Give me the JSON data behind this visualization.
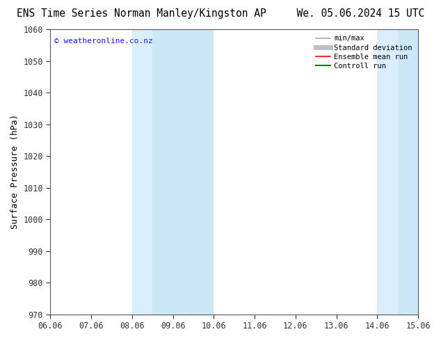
{
  "title_left": "ENS Time Series Norman Manley/Kingston AP",
  "title_right": "We. 05.06.2024 15 UTC",
  "ylabel": "Surface Pressure (hPa)",
  "xlim": [
    0,
    9
  ],
  "ylim": [
    970,
    1060
  ],
  "yticks": [
    970,
    980,
    990,
    1000,
    1010,
    1020,
    1030,
    1040,
    1050,
    1060
  ],
  "xtick_labels": [
    "06.06",
    "07.06",
    "08.06",
    "09.06",
    "10.06",
    "11.06",
    "12.06",
    "13.06",
    "14.06",
    "15.06"
  ],
  "shaded_bands": [
    {
      "x_start": 2.0,
      "x_end": 2.5,
      "color": "#daeeff"
    },
    {
      "x_start": 2.5,
      "x_end": 4.0,
      "color": "#cce8f8"
    },
    {
      "x_start": 8.0,
      "x_end": 8.5,
      "color": "#daeeff"
    },
    {
      "x_start": 8.5,
      "x_end": 9.0,
      "color": "#cce8f8"
    }
  ],
  "watermark": "© weatheronline.co.nz",
  "watermark_color": "#1a1aff",
  "legend_items": [
    {
      "label": "min/max",
      "color": "#aaaaaa",
      "lw": 1.2,
      "style": "solid"
    },
    {
      "label": "Standard deviation",
      "color": "#c0c0c0",
      "lw": 5,
      "style": "solid"
    },
    {
      "label": "Ensemble mean run",
      "color": "#ff0000",
      "lw": 1.2,
      "style": "solid"
    },
    {
      "label": "Controll run",
      "color": "#008000",
      "lw": 1.5,
      "style": "solid"
    }
  ],
  "bg_color": "#ffffff",
  "spine_color": "#555555",
  "tick_color": "#333333",
  "font_color": "#000000",
  "title_fontsize": 10.5,
  "axis_fontsize": 8.5,
  "ylabel_fontsize": 9
}
